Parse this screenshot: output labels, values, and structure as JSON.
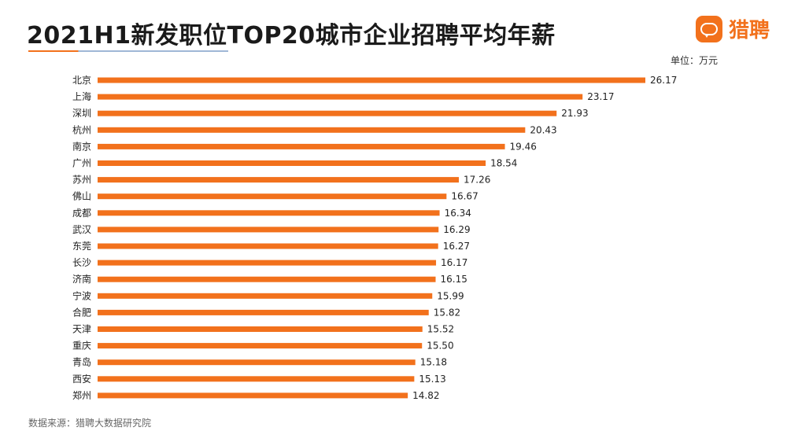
{
  "header": {
    "title": "2021H1新发职位TOP20城市企业招聘平均年薪",
    "unit_label": "单位：万元",
    "brand_name": "猎聘",
    "brand_icon": "liepin-logo-icon"
  },
  "footer": {
    "source": "数据来源：猎聘大数据研究院"
  },
  "colors": {
    "bar": "#f2711c",
    "accent": "#f2711c",
    "title_rule_secondary": "#9fb7d6"
  },
  "chart_data": {
    "type": "bar",
    "orientation": "horizontal",
    "title": "2021H1新发职位TOP20城市企业招聘平均年薪",
    "unit": "万元",
    "categories": [
      "北京",
      "上海",
      "深圳",
      "杭州",
      "南京",
      "广州",
      "苏州",
      "佛山",
      "成都",
      "武汉",
      "东莞",
      "长沙",
      "济南",
      "宁波",
      "合肥",
      "天津",
      "重庆",
      "青岛",
      "西安",
      "郑州"
    ],
    "values": [
      26.17,
      23.17,
      21.93,
      20.43,
      19.46,
      18.54,
      17.26,
      16.67,
      16.34,
      16.29,
      16.27,
      16.17,
      16.15,
      15.99,
      15.82,
      15.52,
      15.5,
      15.18,
      15.13,
      14.82
    ],
    "value_labels": [
      "26.17",
      "23.17",
      "21.93",
      "20.43",
      "19.46",
      "18.54",
      "17.26",
      "16.67",
      "16.34",
      "16.29",
      "16.27",
      "16.17",
      "16.15",
      "15.99",
      "15.82",
      "15.52",
      "15.50",
      "15.18",
      "15.13",
      "14.82"
    ],
    "xlim": [
      0,
      26.17
    ],
    "grid": false,
    "legend": "none"
  }
}
